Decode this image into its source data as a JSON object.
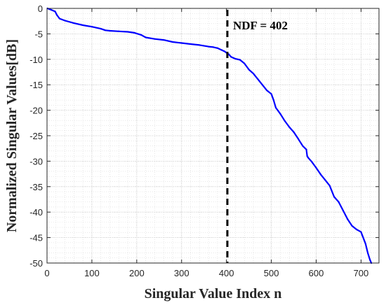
{
  "chart_data": {
    "type": "line",
    "title": "",
    "xlabel": "Singular Value Index n",
    "ylabel": "Normalized Singular Values[dB]",
    "xlim": [
      0,
      740
    ],
    "ylim": [
      -50,
      0
    ],
    "xticks": [
      0,
      100,
      200,
      300,
      400,
      500,
      600,
      700
    ],
    "yticks": [
      0,
      -5,
      -10,
      -15,
      -20,
      -25,
      -30,
      -35,
      -40,
      -45,
      -50
    ],
    "grid": true,
    "minor_grid": true,
    "legend": "none",
    "series": [
      {
        "color": "#0000ff",
        "x": [
          1,
          10,
          18,
          22,
          28,
          40,
          60,
          80,
          100,
          120,
          130,
          140,
          160,
          180,
          195,
          210,
          220,
          240,
          260,
          280,
          300,
          320,
          340,
          360,
          370,
          380,
          390,
          395,
          400,
          403,
          405,
          410,
          420,
          430,
          440,
          450,
          460,
          470,
          480,
          490,
          500,
          505,
          510,
          520,
          530,
          540,
          550,
          560,
          570,
          578,
          580,
          582,
          590,
          600,
          610,
          620,
          630,
          640,
          650,
          660,
          670,
          680,
          690,
          700,
          710,
          715,
          720,
          723
        ],
        "y": [
          0,
          -0.3,
          -0.6,
          -1.3,
          -2.0,
          -2.4,
          -2.9,
          -3.3,
          -3.6,
          -4.0,
          -4.3,
          -4.4,
          -4.5,
          -4.6,
          -4.8,
          -5.2,
          -5.7,
          -6.0,
          -6.2,
          -6.6,
          -6.8,
          -7.0,
          -7.2,
          -7.5,
          -7.6,
          -7.8,
          -8.2,
          -8.4,
          -8.7,
          -8.9,
          -9.0,
          -9.5,
          -9.9,
          -10.1,
          -10.8,
          -12.0,
          -12.8,
          -13.9,
          -15.0,
          -16.1,
          -16.8,
          -18.0,
          -19.5,
          -20.7,
          -22.1,
          -23.3,
          -24.3,
          -25.6,
          -27.0,
          -27.7,
          -29.0,
          -29.3,
          -30.1,
          -31.3,
          -32.6,
          -33.7,
          -34.8,
          -37.0,
          -38.0,
          -39.7,
          -41.4,
          -42.7,
          -43.4,
          -43.9,
          -46.2,
          -48.0,
          -49.4,
          -50.0
        ]
      }
    ],
    "annotations": [
      {
        "type": "vline",
        "x": 402,
        "style": "dashed",
        "color": "#000000",
        "label": "NDF = 402"
      }
    ]
  }
}
